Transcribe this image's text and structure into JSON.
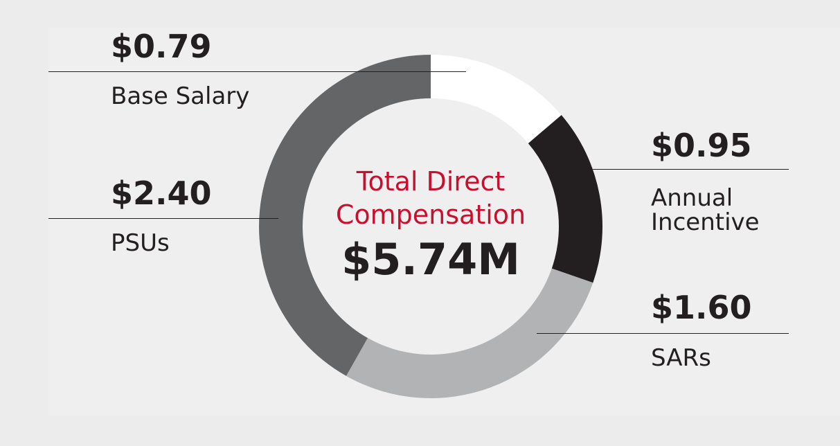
{
  "chart_data": {
    "type": "pie",
    "title_lines": [
      "Total Direct",
      "Compensation"
    ],
    "total": "$5.74M",
    "slices": [
      {
        "label": "Base Salary",
        "display": "$0.79",
        "value": 0.79,
        "color": "#ffffff"
      },
      {
        "label": "Annual Incentive",
        "label_lines": [
          "Annual",
          "Incentive"
        ],
        "display": "$0.95",
        "value": 0.95,
        "color": "#231f20"
      },
      {
        "label": "SARs",
        "display": "$1.60",
        "value": 1.6,
        "color": "#b2b3b4"
      },
      {
        "label": "PSUs",
        "display": "$2.40",
        "value": 2.4,
        "color": "#646567"
      }
    ]
  }
}
